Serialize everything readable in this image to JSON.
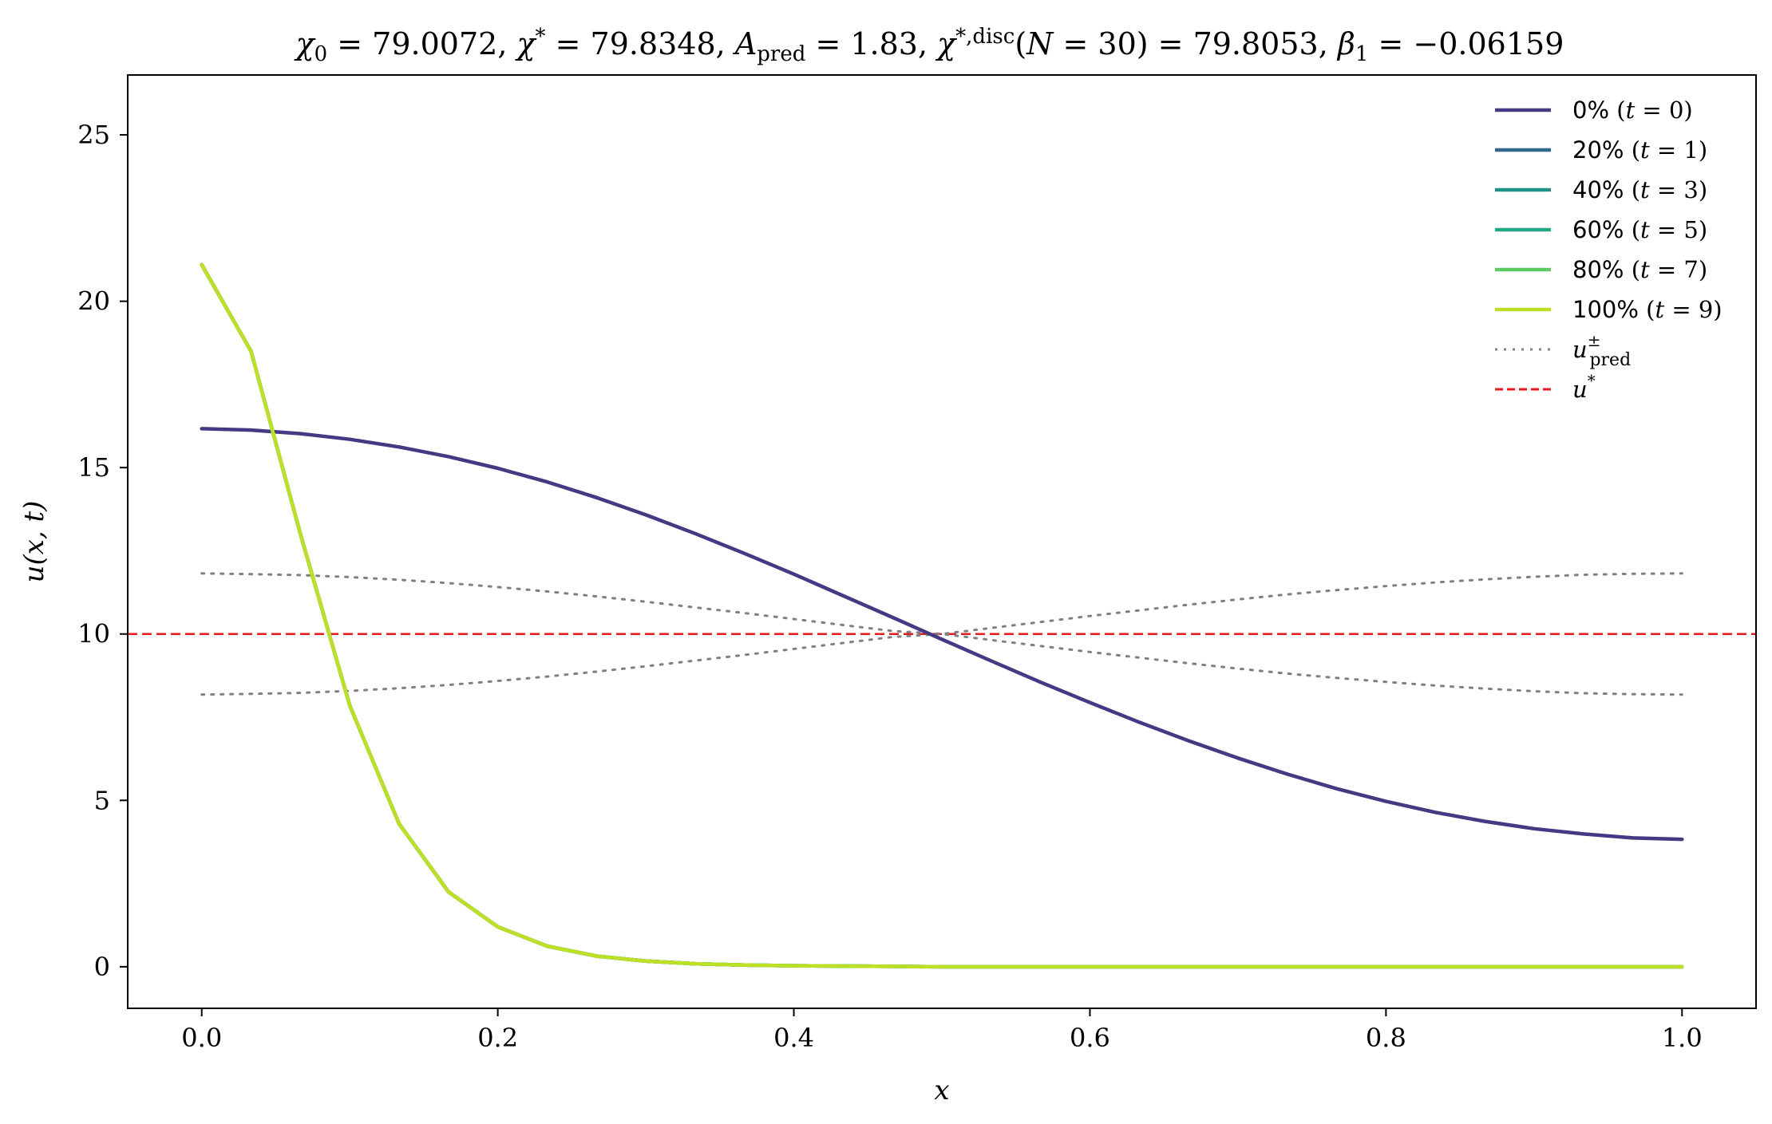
{
  "chart_data": {
    "type": "line",
    "title": "χ₀ = 79.0072,  χ* = 79.8348,  A_pred = 1.83,  χ*,disc(N = 30) = 79.8053,  β₁ = −0.06159",
    "xlabel": "x",
    "ylabel": "u(x, t)",
    "xlim": [
      -0.05,
      1.05
    ],
    "ylim": [
      -1.25,
      26.8
    ],
    "xticks": [
      0.0,
      0.2,
      0.4,
      0.6,
      0.8,
      1.0
    ],
    "xtick_labels": [
      "0.0",
      "0.2",
      "0.4",
      "0.6",
      "0.8",
      "1.0"
    ],
    "yticks": [
      0,
      5,
      10,
      15,
      20,
      25
    ],
    "ytick_labels": [
      "0",
      "5",
      "10",
      "15",
      "20",
      "25"
    ],
    "grid": false,
    "legend_position": "top-right",
    "x": [
      0.0,
      0.0333,
      0.0667,
      0.1,
      0.1333,
      0.1667,
      0.2,
      0.2333,
      0.2667,
      0.3,
      0.3333,
      0.3667,
      0.4,
      0.4333,
      0.4667,
      0.5,
      0.5333,
      0.5667,
      0.6,
      0.6333,
      0.6667,
      0.7,
      0.7333,
      0.7667,
      0.8,
      0.8333,
      0.8667,
      0.9,
      0.9333,
      0.9667,
      1.0
    ],
    "series": [
      {
        "name": "0% (t = 0)",
        "color": "#443983",
        "style": "solid",
        "values": [
          16.17,
          16.13,
          16.02,
          15.85,
          15.62,
          15.33,
          14.98,
          14.57,
          14.1,
          13.58,
          13.02,
          12.42,
          11.8,
          11.15,
          10.5,
          9.84,
          9.19,
          8.55,
          7.94,
          7.35,
          6.79,
          6.27,
          5.79,
          5.35,
          4.97,
          4.64,
          4.37,
          4.15,
          3.99,
          3.87,
          3.83
        ]
      },
      {
        "name": "20% (t = 1)",
        "color": "#31688e",
        "style": "solid",
        "values": [
          21.1,
          18.5,
          13.0,
          7.85,
          4.3,
          2.25,
          1.2,
          0.62,
          0.32,
          0.17,
          0.09,
          0.05,
          0.03,
          0.02,
          0.01,
          0.0,
          0.0,
          0.0,
          0.0,
          0.0,
          0.0,
          0.0,
          0.0,
          0.0,
          0.0,
          0.0,
          0.0,
          0.0,
          0.0,
          0.0,
          0.0
        ]
      },
      {
        "name": "40% (t = 3)",
        "color": "#21918c",
        "style": "solid",
        "values": [
          21.1,
          18.5,
          13.0,
          7.85,
          4.3,
          2.25,
          1.2,
          0.62,
          0.32,
          0.17,
          0.09,
          0.05,
          0.03,
          0.02,
          0.01,
          0.0,
          0.0,
          0.0,
          0.0,
          0.0,
          0.0,
          0.0,
          0.0,
          0.0,
          0.0,
          0.0,
          0.0,
          0.0,
          0.0,
          0.0,
          0.0
        ]
      },
      {
        "name": "60% (t = 5)",
        "color": "#22a884",
        "style": "solid",
        "values": [
          21.1,
          18.5,
          13.0,
          7.85,
          4.3,
          2.25,
          1.2,
          0.62,
          0.32,
          0.17,
          0.09,
          0.05,
          0.03,
          0.02,
          0.01,
          0.0,
          0.0,
          0.0,
          0.0,
          0.0,
          0.0,
          0.0,
          0.0,
          0.0,
          0.0,
          0.0,
          0.0,
          0.0,
          0.0,
          0.0,
          0.0
        ]
      },
      {
        "name": "80% (t = 7)",
        "color": "#5ec962",
        "style": "solid",
        "values": [
          21.1,
          18.5,
          13.0,
          7.85,
          4.3,
          2.25,
          1.2,
          0.62,
          0.32,
          0.17,
          0.09,
          0.05,
          0.03,
          0.02,
          0.01,
          0.0,
          0.0,
          0.0,
          0.0,
          0.0,
          0.0,
          0.0,
          0.0,
          0.0,
          0.0,
          0.0,
          0.0,
          0.0,
          0.0,
          0.0,
          0.0
        ]
      },
      {
        "name": "100% (t = 9)",
        "color": "#bddf26",
        "style": "solid",
        "values": [
          21.1,
          18.5,
          13.0,
          7.85,
          4.3,
          2.25,
          1.2,
          0.62,
          0.32,
          0.17,
          0.09,
          0.05,
          0.03,
          0.02,
          0.01,
          0.0,
          0.0,
          0.0,
          0.0,
          0.0,
          0.0,
          0.0,
          0.0,
          0.0,
          0.0,
          0.0,
          0.0,
          0.0,
          0.0,
          0.0,
          0.0
        ]
      },
      {
        "name": "u±pred (+)",
        "color": "#808080",
        "style": "dotted",
        "values": [
          11.82,
          11.8,
          11.77,
          11.71,
          11.63,
          11.53,
          11.41,
          11.28,
          11.13,
          10.97,
          10.8,
          10.63,
          10.45,
          10.27,
          10.09,
          10.0,
          9.82,
          9.64,
          9.46,
          9.29,
          9.12,
          8.96,
          8.81,
          8.68,
          8.56,
          8.45,
          8.36,
          8.28,
          8.22,
          8.19,
          8.18
        ]
      },
      {
        "name": "u±pred (−)",
        "color": "#808080",
        "style": "dotted",
        "values": [
          8.18,
          8.2,
          8.23,
          8.29,
          8.37,
          8.47,
          8.59,
          8.72,
          8.87,
          9.03,
          9.2,
          9.37,
          9.55,
          9.73,
          9.91,
          10.0,
          10.18,
          10.36,
          10.54,
          10.71,
          10.88,
          11.04,
          11.19,
          11.32,
          11.44,
          11.55,
          11.64,
          11.72,
          11.78,
          11.81,
          11.82
        ]
      }
    ],
    "reference_line": {
      "name": "u*",
      "y": 10,
      "color": "#e41a1c",
      "style": "dashed"
    },
    "legend": [
      {
        "label_main": "0%",
        "label_math": "(t = 0)",
        "color": "#443983",
        "style": "solid"
      },
      {
        "label_main": "20%",
        "label_math": "(t = 1)",
        "color": "#31688e",
        "style": "solid"
      },
      {
        "label_main": "40%",
        "label_math": "(t = 3)",
        "color": "#21918c",
        "style": "solid"
      },
      {
        "label_main": "60%",
        "label_math": "(t = 5)",
        "color": "#22a884",
        "style": "solid"
      },
      {
        "label_main": "80%",
        "label_math": "(t = 7)",
        "color": "#5ec962",
        "style": "solid"
      },
      {
        "label_main": "100%",
        "label_math": "(t = 9)",
        "color": "#bddf26",
        "style": "solid"
      },
      {
        "label_main": "u",
        "label_sup": "±",
        "label_sub": "pred",
        "color": "#808080",
        "style": "dotted"
      },
      {
        "label_main": "u",
        "label_sup": "*",
        "label_sub": "",
        "color": "#e41a1c",
        "style": "dashed"
      }
    ]
  }
}
